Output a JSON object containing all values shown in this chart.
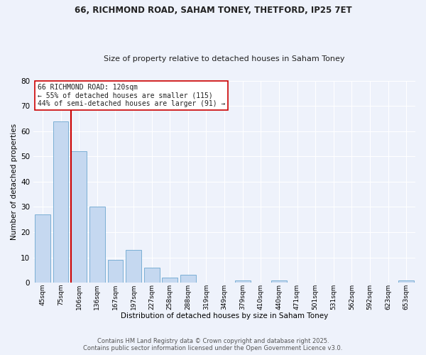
{
  "title1": "66, RICHMOND ROAD, SAHAM TONEY, THETFORD, IP25 7ET",
  "title2": "Size of property relative to detached houses in Saham Toney",
  "xlabel": "Distribution of detached houses by size in Saham Toney",
  "ylabel": "Number of detached properties",
  "categories": [
    "45sqm",
    "75sqm",
    "106sqm",
    "136sqm",
    "167sqm",
    "197sqm",
    "227sqm",
    "258sqm",
    "288sqm",
    "319sqm",
    "349sqm",
    "379sqm",
    "410sqm",
    "440sqm",
    "471sqm",
    "501sqm",
    "531sqm",
    "562sqm",
    "592sqm",
    "623sqm",
    "653sqm"
  ],
  "values": [
    27,
    64,
    52,
    30,
    9,
    13,
    6,
    2,
    3,
    0,
    0,
    1,
    0,
    1,
    0,
    0,
    0,
    0,
    0,
    0,
    1
  ],
  "bar_color": "#c5d8f0",
  "bar_edge_color": "#7bafd4",
  "red_line_index": 2,
  "annotation_text": "66 RICHMOND ROAD: 120sqm\n← 55% of detached houses are smaller (115)\n44% of semi-detached houses are larger (91) →",
  "annotation_box_color": "#ffffff",
  "annotation_box_edge_color": "#cc0000",
  "ylim": [
    0,
    80
  ],
  "yticks": [
    0,
    10,
    20,
    30,
    40,
    50,
    60,
    70,
    80
  ],
  "red_line_color": "#cc0000",
  "footer1": "Contains HM Land Registry data © Crown copyright and database right 2025.",
  "footer2": "Contains public sector information licensed under the Open Government Licence v3.0.",
  "bg_color": "#eef2fb",
  "grid_color": "#ffffff",
  "font_color": "#222222"
}
